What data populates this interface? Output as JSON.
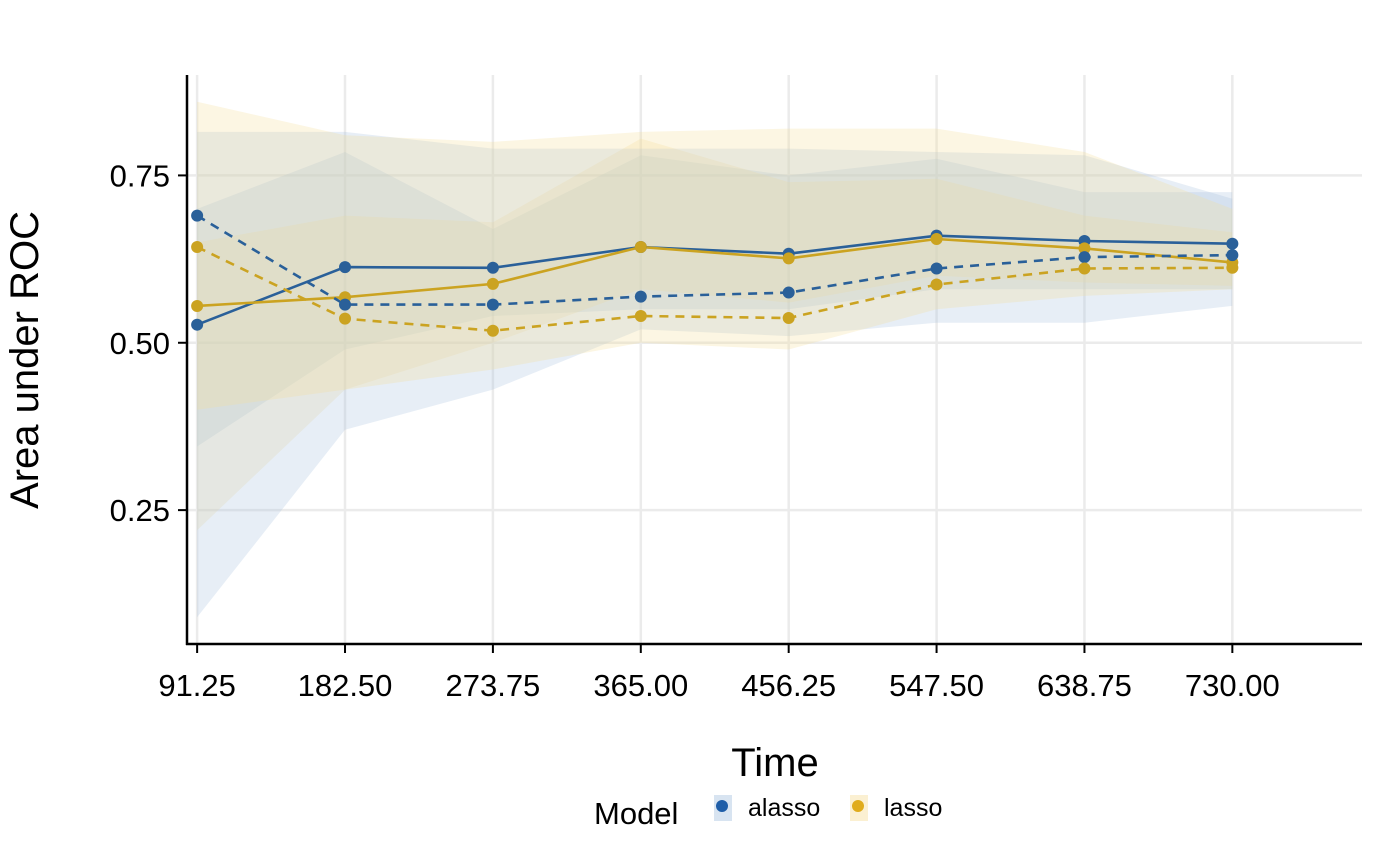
{
  "chart_data": {
    "type": "line",
    "x": [
      91.25,
      182.5,
      273.75,
      365.0,
      456.25,
      547.5,
      638.75,
      730.0
    ],
    "x_tick_labels": [
      "91.25",
      "182.50",
      "273.75",
      "365.00",
      "456.25",
      "547.50",
      "638.75",
      "730.00"
    ],
    "y_ticks": [
      0.25,
      0.5,
      0.75
    ],
    "y_tick_labels": [
      "0.25",
      "0.50",
      "0.75"
    ],
    "xlabel": "Time",
    "ylabel": "Area under ROC",
    "xlim": [
      85,
      810
    ],
    "ylim": [
      0.05,
      0.9
    ],
    "grid": true,
    "legend": {
      "title": "Model",
      "position": "bottom",
      "entries": [
        "alasso",
        "lasso"
      ]
    },
    "colors": {
      "alasso": "#2a6099",
      "lasso": "#cba321",
      "alasso_point": "#1f5ea8",
      "lasso_point": "#e0ac1c",
      "alasso_band": "#a9c3e0",
      "lasso_band": "#f6dd9c",
      "grid": "#ebebeb"
    },
    "series": [
      {
        "name": "alasso",
        "linetype": "solid",
        "values": [
          0.527,
          0.613,
          0.612,
          0.643,
          0.633,
          0.66,
          0.652,
          0.648
        ],
        "lower": [
          0.345,
          0.49,
          0.54,
          0.55,
          0.55,
          0.58,
          0.58,
          0.58
        ],
        "upper": [
          0.7,
          0.785,
          0.67,
          0.78,
          0.75,
          0.775,
          0.725,
          0.725
        ]
      },
      {
        "name": "lasso",
        "linetype": "solid",
        "values": [
          0.555,
          0.568,
          0.588,
          0.643,
          0.626,
          0.655,
          0.641,
          0.62
        ],
        "lower": [
          0.22,
          0.43,
          0.5,
          0.58,
          0.56,
          0.6,
          0.59,
          0.585
        ],
        "upper": [
          0.65,
          0.69,
          0.68,
          0.805,
          0.74,
          0.745,
          0.69,
          0.665
        ]
      },
      {
        "name": "alasso",
        "linetype": "dashed",
        "values": [
          0.69,
          0.557,
          0.557,
          0.569,
          0.575,
          0.611,
          0.628,
          0.631
        ],
        "lower": [
          0.09,
          0.37,
          0.43,
          0.52,
          0.51,
          0.53,
          0.53,
          0.555
        ],
        "upper": [
          0.815,
          0.815,
          0.79,
          0.79,
          0.79,
          0.785,
          0.78,
          0.715
        ]
      },
      {
        "name": "lasso",
        "linetype": "dashed",
        "values": [
          0.643,
          0.536,
          0.518,
          0.54,
          0.537,
          0.587,
          0.611,
          0.612
        ],
        "lower": [
          0.4,
          0.43,
          0.46,
          0.5,
          0.49,
          0.55,
          0.57,
          0.58
        ],
        "upper": [
          0.86,
          0.81,
          0.8,
          0.815,
          0.82,
          0.82,
          0.785,
          0.7
        ]
      }
    ]
  }
}
